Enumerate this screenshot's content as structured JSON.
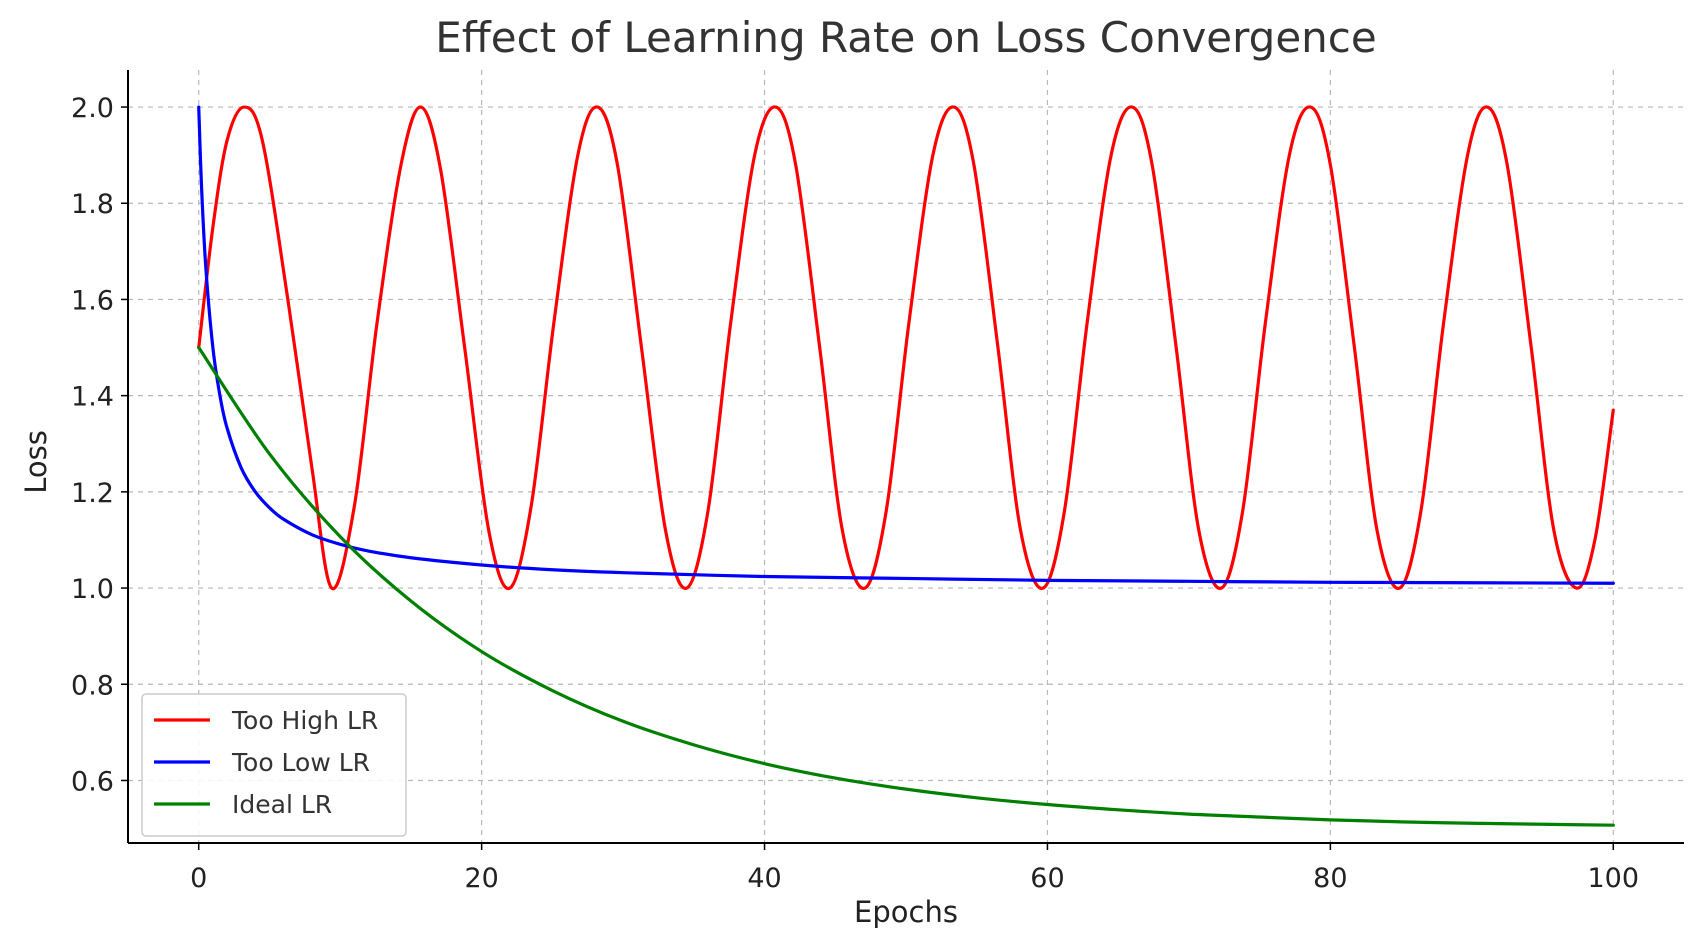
{
  "chart_data": {
    "type": "line",
    "title": "Effect of Learning Rate on Loss Convergence",
    "xlabel": "Epochs",
    "ylabel": "Loss",
    "xlim": [
      -5,
      105
    ],
    "ylim": [
      0.47,
      2.077
    ],
    "xticks": [
      0,
      20,
      40,
      60,
      80,
      100
    ],
    "xtick_labels": [
      "0",
      "20",
      "40",
      "60",
      "80",
      "100"
    ],
    "yticks": [
      0.6,
      0.8,
      1.0,
      1.2,
      1.4,
      1.6,
      1.8,
      2.0
    ],
    "ytick_labels": [
      "0.6",
      "0.8",
      "1.0",
      "1.2",
      "1.4",
      "1.6",
      "1.8",
      "2.0"
    ],
    "grid": true,
    "legend_position": "lower-left",
    "series": [
      {
        "name": "Too High LR",
        "color": "#ff0000",
        "x": [
          0,
          1,
          2,
          3.2,
          4.5,
          6.3,
          8,
          9.4,
          11,
          12.6,
          14.3,
          15.7,
          17.1,
          18.8,
          20.5,
          22,
          23.5,
          25.1,
          26.8,
          28.2,
          29.6,
          31.3,
          33,
          34.5,
          36,
          37.6,
          39.3,
          40.8,
          42.2,
          43.9,
          45.5,
          47.1,
          48.6,
          50.2,
          51.9,
          53.4,
          54.8,
          56.5,
          58.1,
          59.7,
          61.2,
          62.8,
          64.5,
          66,
          67.4,
          69.1,
          70.7,
          72.3,
          73.8,
          75.4,
          77.1,
          78.6,
          80,
          81.7,
          83.3,
          84.9,
          86.4,
          88,
          89.7,
          91.1,
          92.5,
          94.2,
          95.8,
          97.4,
          98.7,
          100
        ],
        "y": [
          1.5,
          1.75,
          1.93,
          2.0,
          1.93,
          1.6,
          1.25,
          1.0,
          1.17,
          1.55,
          1.88,
          2.0,
          1.87,
          1.5,
          1.12,
          1.0,
          1.17,
          1.55,
          1.9,
          2.0,
          1.88,
          1.5,
          1.12,
          1.0,
          1.16,
          1.55,
          1.9,
          2.0,
          1.88,
          1.5,
          1.12,
          1.0,
          1.16,
          1.55,
          1.9,
          2.0,
          1.88,
          1.5,
          1.12,
          1.0,
          1.16,
          1.55,
          1.9,
          2.0,
          1.88,
          1.5,
          1.12,
          1.0,
          1.16,
          1.55,
          1.9,
          2.0,
          1.88,
          1.5,
          1.12,
          1.0,
          1.16,
          1.55,
          1.9,
          2.0,
          1.88,
          1.5,
          1.12,
          1.0,
          1.1,
          1.37
        ]
      },
      {
        "name": "Too Low LR",
        "color": "#0000ff",
        "x": [
          0,
          0.2,
          0.5,
          1,
          1.5,
          2,
          3,
          4,
          5,
          6,
          8,
          10,
          12,
          15,
          20,
          25,
          30,
          40,
          50,
          60,
          70,
          80,
          90,
          100
        ],
        "y": [
          2.0,
          1.833,
          1.667,
          1.5,
          1.4,
          1.333,
          1.25,
          1.2,
          1.167,
          1.143,
          1.111,
          1.091,
          1.077,
          1.063,
          1.048,
          1.038,
          1.032,
          1.024,
          1.02,
          1.016,
          1.014,
          1.012,
          1.011,
          1.01
        ]
      },
      {
        "name": "Ideal LR",
        "color": "#008000",
        "x": [
          0,
          5,
          10,
          15,
          20,
          25,
          30,
          35,
          40,
          45,
          50,
          55,
          60,
          65,
          70,
          75,
          80,
          85,
          90,
          95,
          100
        ],
        "y": [
          1.5,
          1.279,
          1.107,
          0.973,
          0.868,
          0.787,
          0.723,
          0.674,
          0.635,
          0.605,
          0.582,
          0.564,
          0.55,
          0.539,
          0.53,
          0.524,
          0.518,
          0.514,
          0.511,
          0.509,
          0.507
        ]
      }
    ]
  }
}
